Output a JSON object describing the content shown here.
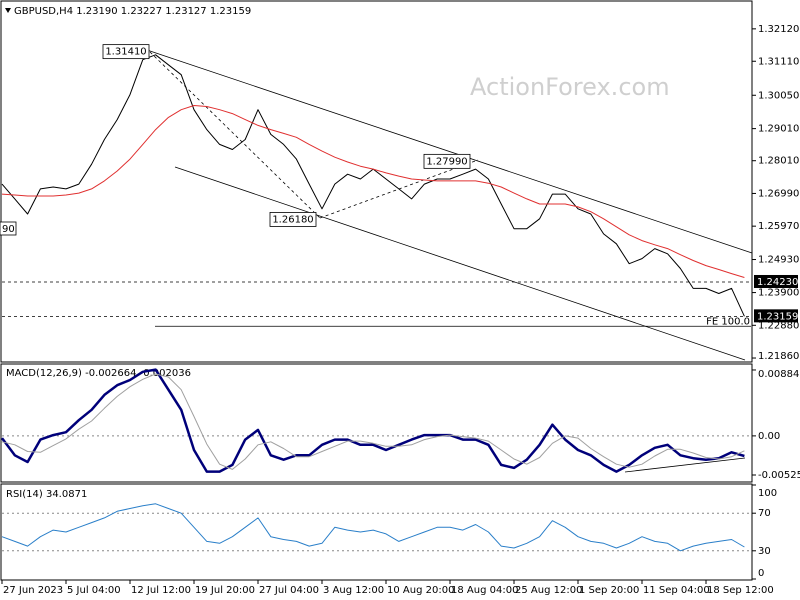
{
  "chart_data": [
    {
      "type": "line",
      "title": "GBPUSD,H4  1.23190 1.23227 1.23127 1.23159",
      "watermark": "ActionForex.com",
      "edge_label": "90",
      "categories": [
        "27 Jun 2023",
        null,
        null,
        null,
        null,
        "5 Jul 04:00",
        null,
        null,
        null,
        null,
        "12 Jul 12:00",
        null,
        null,
        null,
        null,
        "19 Jul 20:00",
        null,
        null,
        null,
        null,
        "27 Jul 04:00",
        null,
        null,
        null,
        null,
        "3 Aug 12:00",
        null,
        null,
        null,
        null,
        "10 Aug 20:00",
        null,
        null,
        null,
        null,
        "18 Aug 04:00",
        null,
        null,
        null,
        null,
        "25 Aug 12:00",
        null,
        null,
        null,
        null,
        "1 Sep 20:00",
        null,
        null,
        null,
        null,
        "11 Sep 04:00",
        null,
        null,
        null,
        null,
        "18 Sep 12:00",
        null,
        null,
        null
      ],
      "series": [
        {
          "color": "#000000",
          "values": [
            1.2728,
            1.2682,
            1.2635,
            1.2713,
            1.2719,
            1.2713,
            1.2728,
            1.279,
            1.2867,
            1.2929,
            1.3007,
            1.3116,
            1.3131,
            1.31,
            1.3069,
            1.296,
            1.2898,
            1.2852,
            1.2836,
            1.2867,
            1.296,
            1.2883,
            1.2852,
            1.2806,
            1.2728,
            1.2651,
            1.2728,
            1.2759,
            1.2744,
            1.2775,
            1.2744,
            1.2713,
            1.2682,
            1.2728,
            1.2744,
            1.2744,
            1.2759,
            1.2775,
            1.2744,
            1.2666,
            1.2589,
            1.2589,
            1.262,
            1.2697,
            1.2697,
            1.2651,
            1.2635,
            1.2573,
            1.2542,
            1.248,
            1.2496,
            1.2527,
            1.2511,
            1.2465,
            1.2403,
            1.2403,
            1.2387,
            1.2403,
            1.2316
          ]
        },
        {
          "color": "#e03030",
          "values": [
            1.2697,
            1.2694,
            1.2691,
            1.2691,
            1.2691,
            1.2694,
            1.27,
            1.2713,
            1.2738,
            1.2769,
            1.2806,
            1.2852,
            1.2898,
            1.2936,
            1.296,
            1.2973,
            1.297,
            1.296,
            1.2948,
            1.2929,
            1.2911,
            1.2898,
            1.2886,
            1.2874,
            1.2852,
            1.2831,
            1.2812,
            1.2797,
            1.2784,
            1.2775,
            1.2763,
            1.2753,
            1.2744,
            1.2741,
            1.2738,
            1.2738,
            1.2738,
            1.2738,
            1.2731,
            1.2719,
            1.27,
            1.2682,
            1.2666,
            1.2666,
            1.2666,
            1.2657,
            1.2642,
            1.262,
            1.2595,
            1.257,
            1.2552,
            1.2539,
            1.2527,
            1.2508,
            1.249,
            1.2474,
            1.2462,
            1.2449,
            1.2437
          ]
        }
      ],
      "ylim": [
        1.21736,
        1.32957
      ],
      "yticks": [
        {
          "value": 1.3212,
          "label": "1.32120"
        },
        {
          "value": 1.3111,
          "label": "1.31110"
        },
        {
          "value": 1.3005,
          "label": "1.30050"
        },
        {
          "value": 1.2901,
          "label": "1.29010"
        },
        {
          "value": 1.2801,
          "label": "1.28010"
        },
        {
          "value": 1.2699,
          "label": "1.26990"
        },
        {
          "value": 1.2597,
          "label": "1.25970"
        },
        {
          "value": 1.2493,
          "label": "1.24930"
        },
        {
          "value": 1.239,
          "label": "1.23900"
        },
        {
          "value": 1.2288,
          "label": "1.22880"
        },
        {
          "value": 1.2186,
          "label": "1.21860"
        }
      ],
      "peaks": [
        {
          "value": 1.3141,
          "label": "1.31410"
        },
        {
          "value": 1.2618,
          "label": "1.26180"
        },
        {
          "value": 1.2799,
          "label": "1.27990"
        }
      ],
      "levels": [
        {
          "value": 1.2423,
          "label": "1.24230"
        },
        {
          "value": 1.23159,
          "label": "1.23159"
        }
      ],
      "fib_line": {
        "value": 1.2285,
        "label": "FE 100.0"
      },
      "grid": false
    },
    {
      "type": "line",
      "title": "MACD(12,26,9) -0.002664 -0.002036",
      "series": [
        {
          "color": "#00007a",
          "values": [
            -0.0003,
            -0.0026,
            -0.0035,
            -0.0005,
            0.0001,
            0.0005,
            0.0021,
            0.0035,
            0.0055,
            0.0068,
            0.0075,
            0.0086,
            0.0089,
            0.0062,
            0.0035,
            -0.0019,
            -0.0048,
            -0.0048,
            -0.0039,
            -0.0005,
            0.0008,
            -0.0026,
            -0.0032,
            -0.0026,
            -0.0026,
            -0.0012,
            -0.0005,
            -0.0005,
            -0.0012,
            -0.0012,
            -0.0019,
            -0.0012,
            -0.0005,
            0.0001,
            0.0001,
            0.0001,
            -0.0005,
            -0.0005,
            -0.0012,
            -0.0039,
            -0.0043,
            -0.0032,
            -0.0012,
            0.0015,
            -0.0005,
            -0.0019,
            -0.0026,
            -0.0039,
            -0.0048,
            -0.0039,
            -0.0026,
            -0.0016,
            -0.0012,
            -0.0026,
            -0.003,
            -0.0032,
            -0.003,
            -0.0022,
            -0.0027
          ]
        },
        {
          "color": "#a0a0a0",
          "values": [
            -0.0008,
            -0.0012,
            -0.0021,
            -0.0022,
            -0.0013,
            -0.0004,
            0.0009,
            0.002,
            0.0037,
            0.0053,
            0.0066,
            0.0076,
            0.0083,
            0.0079,
            0.0062,
            0.0026,
            -0.0011,
            -0.0038,
            -0.0045,
            -0.0031,
            -0.0012,
            -0.0008,
            -0.0017,
            -0.0028,
            -0.0028,
            -0.0021,
            -0.0014,
            -0.0007,
            -0.0007,
            -0.001,
            -0.0014,
            -0.0014,
            -0.0012,
            -0.0005,
            -0.0001,
            0.0001,
            -0.0001,
            -0.0003,
            -0.0007,
            -0.0019,
            -0.0031,
            -0.0038,
            -0.0029,
            -0.001,
            0,
            -0.0003,
            -0.0017,
            -0.0028,
            -0.0038,
            -0.0042,
            -0.0038,
            -0.0027,
            -0.0018,
            -0.0018,
            -0.0023,
            -0.0029,
            -0.0031,
            -0.0028,
            -0.002
          ]
        }
      ],
      "ylim": [
        -0.00619,
        0.00938
      ],
      "yticks": [
        0.008846,
        {
          "value": 0,
          "label": "0.00"
        },
        -0.005252
      ],
      "grid": true
    },
    {
      "type": "line",
      "title": "RSI(14) 34.0871",
      "series": [
        {
          "color": "#2a7fc9",
          "values": [
            45,
            40,
            35,
            45,
            52,
            50,
            55,
            60,
            65,
            72,
            75,
            78,
            80,
            75,
            70,
            55,
            40,
            38,
            45,
            55,
            65,
            45,
            42,
            40,
            35,
            38,
            55,
            52,
            50,
            52,
            48,
            40,
            45,
            50,
            55,
            55,
            52,
            58,
            50,
            35,
            33,
            38,
            45,
            62,
            55,
            45,
            40,
            38,
            33,
            38,
            45,
            40,
            38,
            30,
            35,
            38,
            40,
            42,
            34
          ]
        }
      ],
      "ylim": [
        0,
        100
      ],
      "yticks": [
        0,
        30,
        70,
        100
      ],
      "grid": true
    }
  ]
}
